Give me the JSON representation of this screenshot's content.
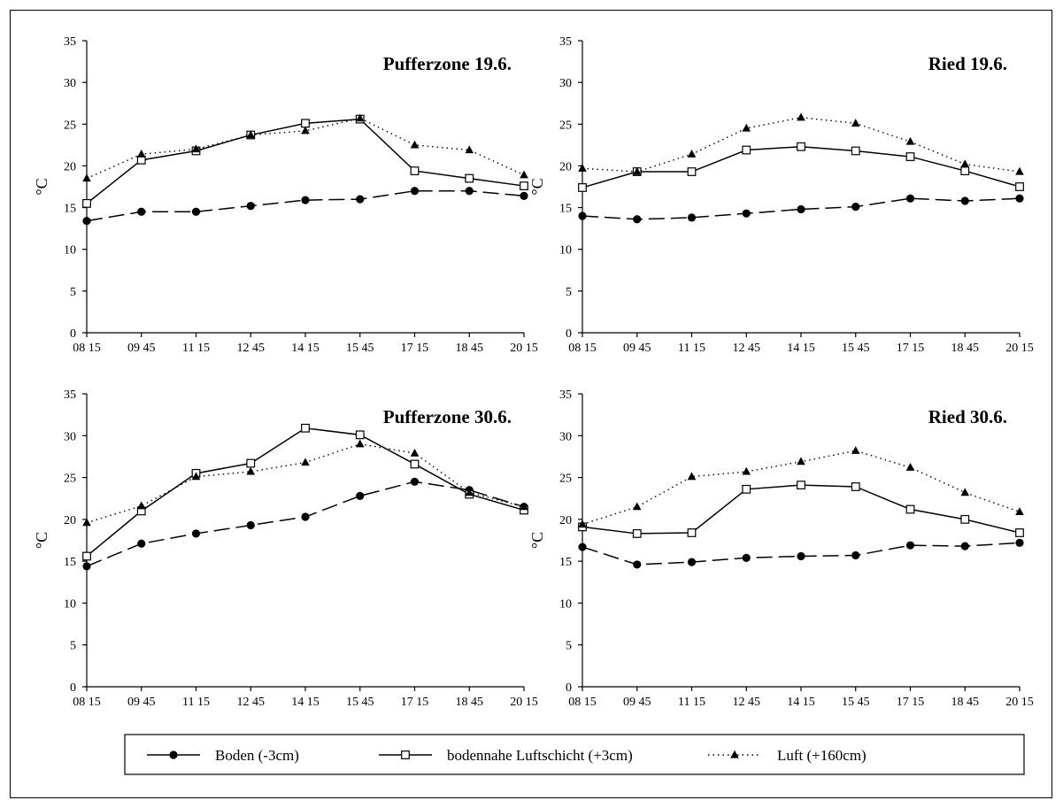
{
  "chart_data": [
    {
      "type": "line",
      "title": "Pufferzone 19.6.",
      "ylabel": "°C",
      "xlabel": "",
      "ylim": [
        0,
        35
      ],
      "yticks": [
        "0",
        "5",
        "10",
        "15",
        "20",
        "25",
        "30",
        "35"
      ],
      "categories": [
        "08 15",
        "09 45",
        "11 15",
        "12 45",
        "14 15",
        "15 45",
        "17 15",
        "18 45",
        "20 15"
      ],
      "series": [
        {
          "name": "Boden (-3cm)",
          "values": [
            13.4,
            14.5,
            14.5,
            15.2,
            15.9,
            16.0,
            17.0,
            17.0,
            16.4
          ]
        },
        {
          "name": "bodennahe Luftschicht (+3cm)",
          "values": [
            15.5,
            20.7,
            21.8,
            23.7,
            25.1,
            25.6,
            19.4,
            18.5,
            17.6
          ]
        },
        {
          "name": "Luft (+160cm)",
          "values": [
            18.5,
            21.4,
            22.0,
            23.7,
            24.2,
            25.7,
            22.5,
            21.9,
            18.9
          ]
        }
      ]
    },
    {
      "type": "line",
      "title": "Ried 19.6.",
      "ylabel": "°C",
      "xlabel": "",
      "ylim": [
        0,
        35
      ],
      "yticks": [
        "0",
        "5",
        "10",
        "15",
        "20",
        "25",
        "30",
        "35"
      ],
      "categories": [
        "08 15",
        "09 45",
        "11 15",
        "12 45",
        "14 15",
        "15 45",
        "17 15",
        "18 45",
        "20 15"
      ],
      "series": [
        {
          "name": "Boden (-3cm)",
          "values": [
            14.0,
            13.6,
            13.8,
            14.3,
            14.8,
            15.1,
            16.1,
            15.8,
            16.1
          ]
        },
        {
          "name": "bodennahe Luftschicht (+3cm)",
          "values": [
            17.4,
            19.3,
            19.3,
            21.9,
            22.3,
            21.8,
            21.1,
            19.4,
            17.5
          ]
        },
        {
          "name": "Luft (+160cm)",
          "values": [
            19.7,
            19.3,
            21.4,
            24.5,
            25.8,
            25.1,
            22.9,
            20.2,
            19.3
          ]
        }
      ]
    },
    {
      "type": "line",
      "title": "Pufferzone 30.6.",
      "ylabel": "°C",
      "xlabel": "",
      "ylim": [
        0,
        35
      ],
      "yticks": [
        "0",
        "5",
        "10",
        "15",
        "20",
        "25",
        "30",
        "35"
      ],
      "categories": [
        "08 15",
        "09 45",
        "11 15",
        "12 45",
        "14 15",
        "15 45",
        "17 15",
        "18 45",
        "20 15"
      ],
      "series": [
        {
          "name": "Boden (-3cm)",
          "values": [
            14.4,
            17.1,
            18.3,
            19.3,
            20.3,
            22.8,
            24.5,
            23.5,
            21.5
          ]
        },
        {
          "name": "bodennahe Luftschicht (+3cm)",
          "values": [
            15.6,
            21.0,
            25.5,
            26.7,
            30.9,
            30.1,
            26.6,
            23.0,
            21.1
          ]
        },
        {
          "name": "Luft (+160cm)",
          "values": [
            19.6,
            21.6,
            25.1,
            25.7,
            26.8,
            29.0,
            27.9,
            23.2,
            21.5
          ]
        }
      ]
    },
    {
      "type": "line",
      "title": "Ried 30.6.",
      "ylabel": "°C",
      "xlabel": "",
      "ylim": [
        0,
        35
      ],
      "yticks": [
        "0",
        "5",
        "10",
        "15",
        "20",
        "25",
        "30",
        "35"
      ],
      "categories": [
        "08 15",
        "09 45",
        "11 15",
        "12 45",
        "14 15",
        "15 45",
        "17 15",
        "18 45",
        "20 15"
      ],
      "series": [
        {
          "name": "Boden (-3cm)",
          "values": [
            16.7,
            14.6,
            14.9,
            15.4,
            15.6,
            15.7,
            16.9,
            16.8,
            17.2
          ]
        },
        {
          "name": "bodennahe Luftschicht (+3cm)",
          "values": [
            19.1,
            18.3,
            18.4,
            23.6,
            24.1,
            23.9,
            21.2,
            20.0,
            18.4
          ]
        },
        {
          "name": "Luft (+160cm)",
          "values": [
            19.4,
            21.5,
            25.1,
            25.7,
            26.9,
            28.2,
            26.2,
            23.2,
            20.9
          ]
        }
      ]
    }
  ],
  "legend": {
    "items": [
      {
        "label": "Boden (-3cm)",
        "marker": "filled-circle",
        "line": "long-dash"
      },
      {
        "label": "bodennahe Luftschicht (+3cm)",
        "marker": "open-square",
        "line": "solid"
      },
      {
        "label": "Luft (+160cm)",
        "marker": "filled-triangle",
        "line": "dotted"
      }
    ]
  }
}
